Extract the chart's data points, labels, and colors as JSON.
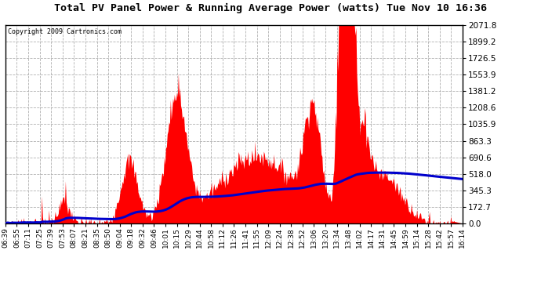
{
  "title": "Total PV Panel Power & Running Average Power (watts) Tue Nov 10 16:36",
  "copyright": "Copyright 2009 Cartronics.com",
  "background_color": "#ffffff",
  "plot_bg_color": "#ffffff",
  "grid_color": "#b0b0b0",
  "fill_color": "#ff0000",
  "line_color": "#0000cc",
  "ymin": 0.0,
  "ymax": 2071.8,
  "yticks": [
    0.0,
    172.7,
    345.3,
    518.0,
    690.6,
    863.3,
    1035.9,
    1208.6,
    1381.2,
    1553.9,
    1726.5,
    1899.2,
    2071.8
  ],
  "x_labels": [
    "06:39",
    "06:55",
    "07:11",
    "07:25",
    "07:39",
    "07:53",
    "08:07",
    "08:21",
    "08:35",
    "08:50",
    "09:04",
    "09:18",
    "09:32",
    "09:46",
    "10:01",
    "10:15",
    "10:29",
    "10:44",
    "10:58",
    "11:12",
    "11:26",
    "11:41",
    "11:55",
    "12:09",
    "12:24",
    "12:38",
    "12:52",
    "13:06",
    "13:20",
    "13:34",
    "13:48",
    "14:02",
    "14:17",
    "14:31",
    "14:45",
    "14:59",
    "15:14",
    "15:28",
    "15:42",
    "15:57",
    "16:14"
  ],
  "n_points": 580
}
